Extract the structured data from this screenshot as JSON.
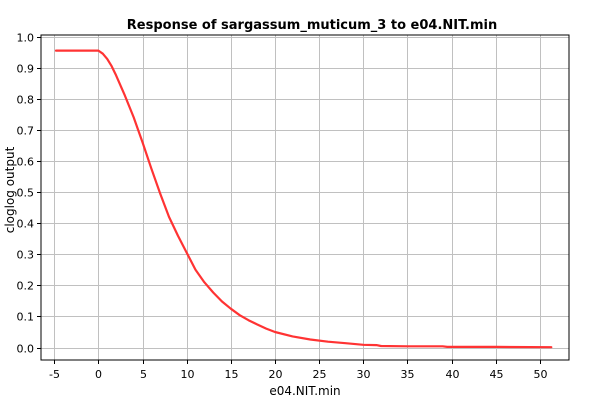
{
  "chart_data": {
    "type": "line",
    "title": "Response of sargassum_muticum_3 to e04.NIT.min",
    "xlabel": "e04.NIT.min",
    "ylabel": "cloglog output",
    "xlim": [
      -6.5,
      53.3
    ],
    "ylim": [
      -0.04,
      1.005
    ],
    "xticks": [
      -5,
      0,
      5,
      10,
      15,
      20,
      25,
      30,
      35,
      40,
      45,
      50
    ],
    "xtick_labels": [
      "-5",
      "0",
      "5",
      "10",
      "15",
      "20",
      "25",
      "30",
      "35",
      "40",
      "45",
      "50"
    ],
    "yticks": [
      0.0,
      0.1,
      0.2,
      0.3,
      0.4,
      0.5,
      0.6,
      0.7,
      0.8,
      0.9,
      1.0
    ],
    "ytick_labels": [
      "0.0",
      "0.1",
      "0.2",
      "0.3",
      "0.4",
      "0.5",
      "0.6",
      "0.7",
      "0.8",
      "0.9",
      "1.0"
    ],
    "grid": true,
    "series": [
      {
        "color": "#ff3333",
        "x": [
          -4.8,
          0,
          0.5,
          1,
          1.5,
          2,
          3,
          4,
          5,
          6,
          7,
          8,
          9,
          10,
          11,
          12,
          13,
          14,
          15,
          16,
          17,
          18,
          19,
          20,
          22,
          24,
          26,
          28,
          30,
          31.5,
          32,
          35,
          39,
          39.5,
          45,
          51.3
        ],
        "y": [
          0.955,
          0.955,
          0.945,
          0.928,
          0.905,
          0.875,
          0.81,
          0.74,
          0.66,
          0.575,
          0.495,
          0.42,
          0.36,
          0.305,
          0.25,
          0.21,
          0.177,
          0.148,
          0.125,
          0.104,
          0.088,
          0.074,
          0.061,
          0.05,
          0.036,
          0.026,
          0.019,
          0.014,
          0.009,
          0.008,
          0.005,
          0.004,
          0.004,
          0.002,
          0.002,
          0.001
        ]
      }
    ]
  }
}
